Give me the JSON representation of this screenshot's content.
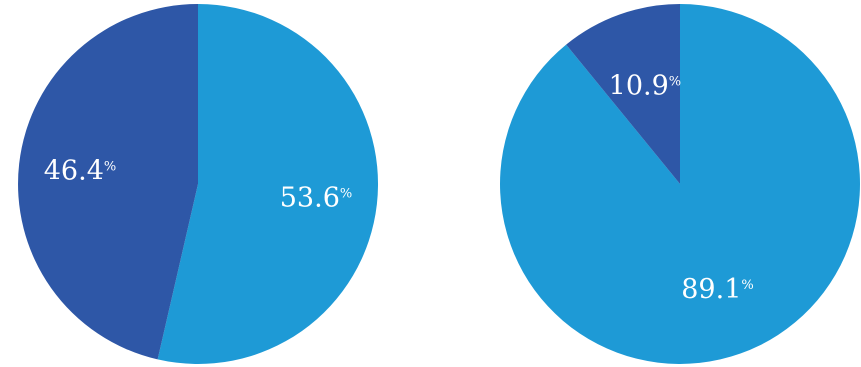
{
  "colors": {
    "light_blue": "#1E9AD6",
    "dark_blue": "#2E57A7",
    "background": "#FFFFFF"
  },
  "chart_data": [
    {
      "type": "pie",
      "title": "",
      "slices": [
        {
          "value": 53.6,
          "label": "53.6",
          "unit": "%",
          "color": "#1E9AD6"
        },
        {
          "value": 46.4,
          "label": "46.4",
          "unit": "%",
          "color": "#2E57A7"
        }
      ],
      "start": "top",
      "direction": "clockwise",
      "legend": "none"
    },
    {
      "type": "pie",
      "title": "",
      "slices": [
        {
          "value": 89.1,
          "label": "89.1",
          "unit": "%",
          "color": "#1E9AD6"
        },
        {
          "value": 10.9,
          "label": "10.9",
          "unit": "%",
          "color": "#2E57A7"
        }
      ],
      "start": "top",
      "direction": "clockwise",
      "legend": "none"
    }
  ]
}
